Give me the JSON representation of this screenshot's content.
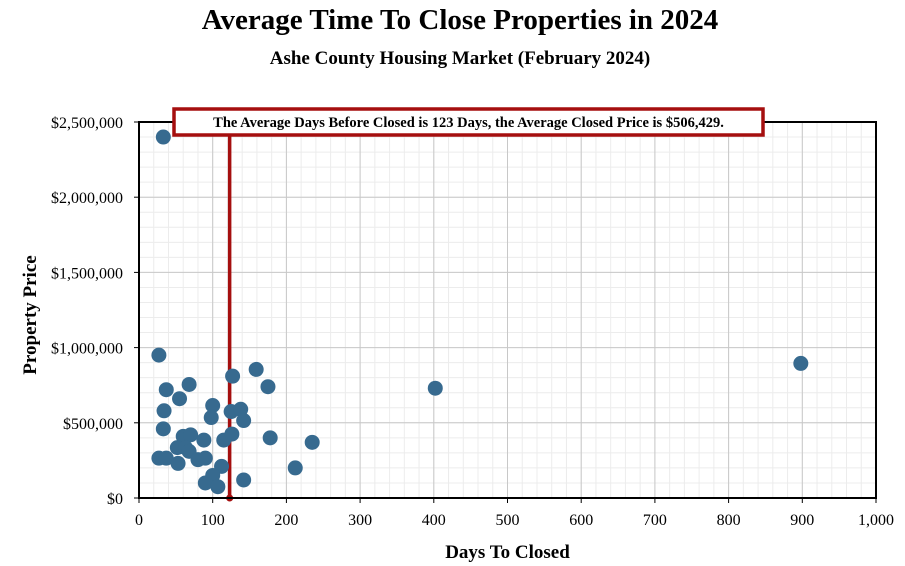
{
  "chart_data": {
    "type": "scatter",
    "title": "Average Time To Close Properties in 2024",
    "subtitle": "Ashe County Housing Market (February 2024)",
    "xlabel": "Days To Closed",
    "ylabel": "Property Price",
    "xlim": [
      0,
      1000
    ],
    "ylim": [
      0,
      2500000
    ],
    "x_ticks": [
      0,
      100,
      200,
      300,
      400,
      500,
      600,
      700,
      800,
      900,
      1000
    ],
    "x_tick_labels": [
      "0",
      "100",
      "200",
      "300",
      "400",
      "500",
      "600",
      "700",
      "800",
      "900",
      "1,000"
    ],
    "y_ticks": [
      0,
      500000,
      1000000,
      1500000,
      2000000,
      2500000
    ],
    "y_tick_labels": [
      "$0",
      "$500,000",
      "$1,000,000",
      "$1,500,000",
      "$2,000,000",
      "$2,500,000"
    ],
    "grid": true,
    "legend": "none",
    "point_color": "#376a8f",
    "average_line": {
      "x": 123,
      "color": "#a50f0f",
      "label": "The Average Days Before Closed is 123 Days, the Average Closed Price is $506,429."
    },
    "points": [
      {
        "x": 33,
        "y": 2400000
      },
      {
        "x": 27,
        "y": 950000
      },
      {
        "x": 37,
        "y": 720000
      },
      {
        "x": 34,
        "y": 580000
      },
      {
        "x": 33,
        "y": 460000
      },
      {
        "x": 27,
        "y": 265000
      },
      {
        "x": 37,
        "y": 265000
      },
      {
        "x": 55,
        "y": 660000
      },
      {
        "x": 68,
        "y": 755000
      },
      {
        "x": 100,
        "y": 615000
      },
      {
        "x": 98,
        "y": 535000
      },
      {
        "x": 60,
        "y": 410000
      },
      {
        "x": 70,
        "y": 420000
      },
      {
        "x": 88,
        "y": 385000
      },
      {
        "x": 52,
        "y": 335000
      },
      {
        "x": 63,
        "y": 335000
      },
      {
        "x": 68,
        "y": 310000
      },
      {
        "x": 80,
        "y": 255000
      },
      {
        "x": 90,
        "y": 265000
      },
      {
        "x": 53,
        "y": 230000
      },
      {
        "x": 112,
        "y": 210000
      },
      {
        "x": 100,
        "y": 150000
      },
      {
        "x": 90,
        "y": 100000
      },
      {
        "x": 107,
        "y": 75000
      },
      {
        "x": 115,
        "y": 385000
      },
      {
        "x": 126,
        "y": 425000
      },
      {
        "x": 125,
        "y": 575000
      },
      {
        "x": 138,
        "y": 590000
      },
      {
        "x": 142,
        "y": 515000
      },
      {
        "x": 127,
        "y": 810000
      },
      {
        "x": 159,
        "y": 855000
      },
      {
        "x": 175,
        "y": 740000
      },
      {
        "x": 178,
        "y": 400000
      },
      {
        "x": 142,
        "y": 120000
      },
      {
        "x": 212,
        "y": 200000
      },
      {
        "x": 235,
        "y": 370000
      },
      {
        "x": 402,
        "y": 730000
      },
      {
        "x": 898,
        "y": 895000
      }
    ]
  }
}
